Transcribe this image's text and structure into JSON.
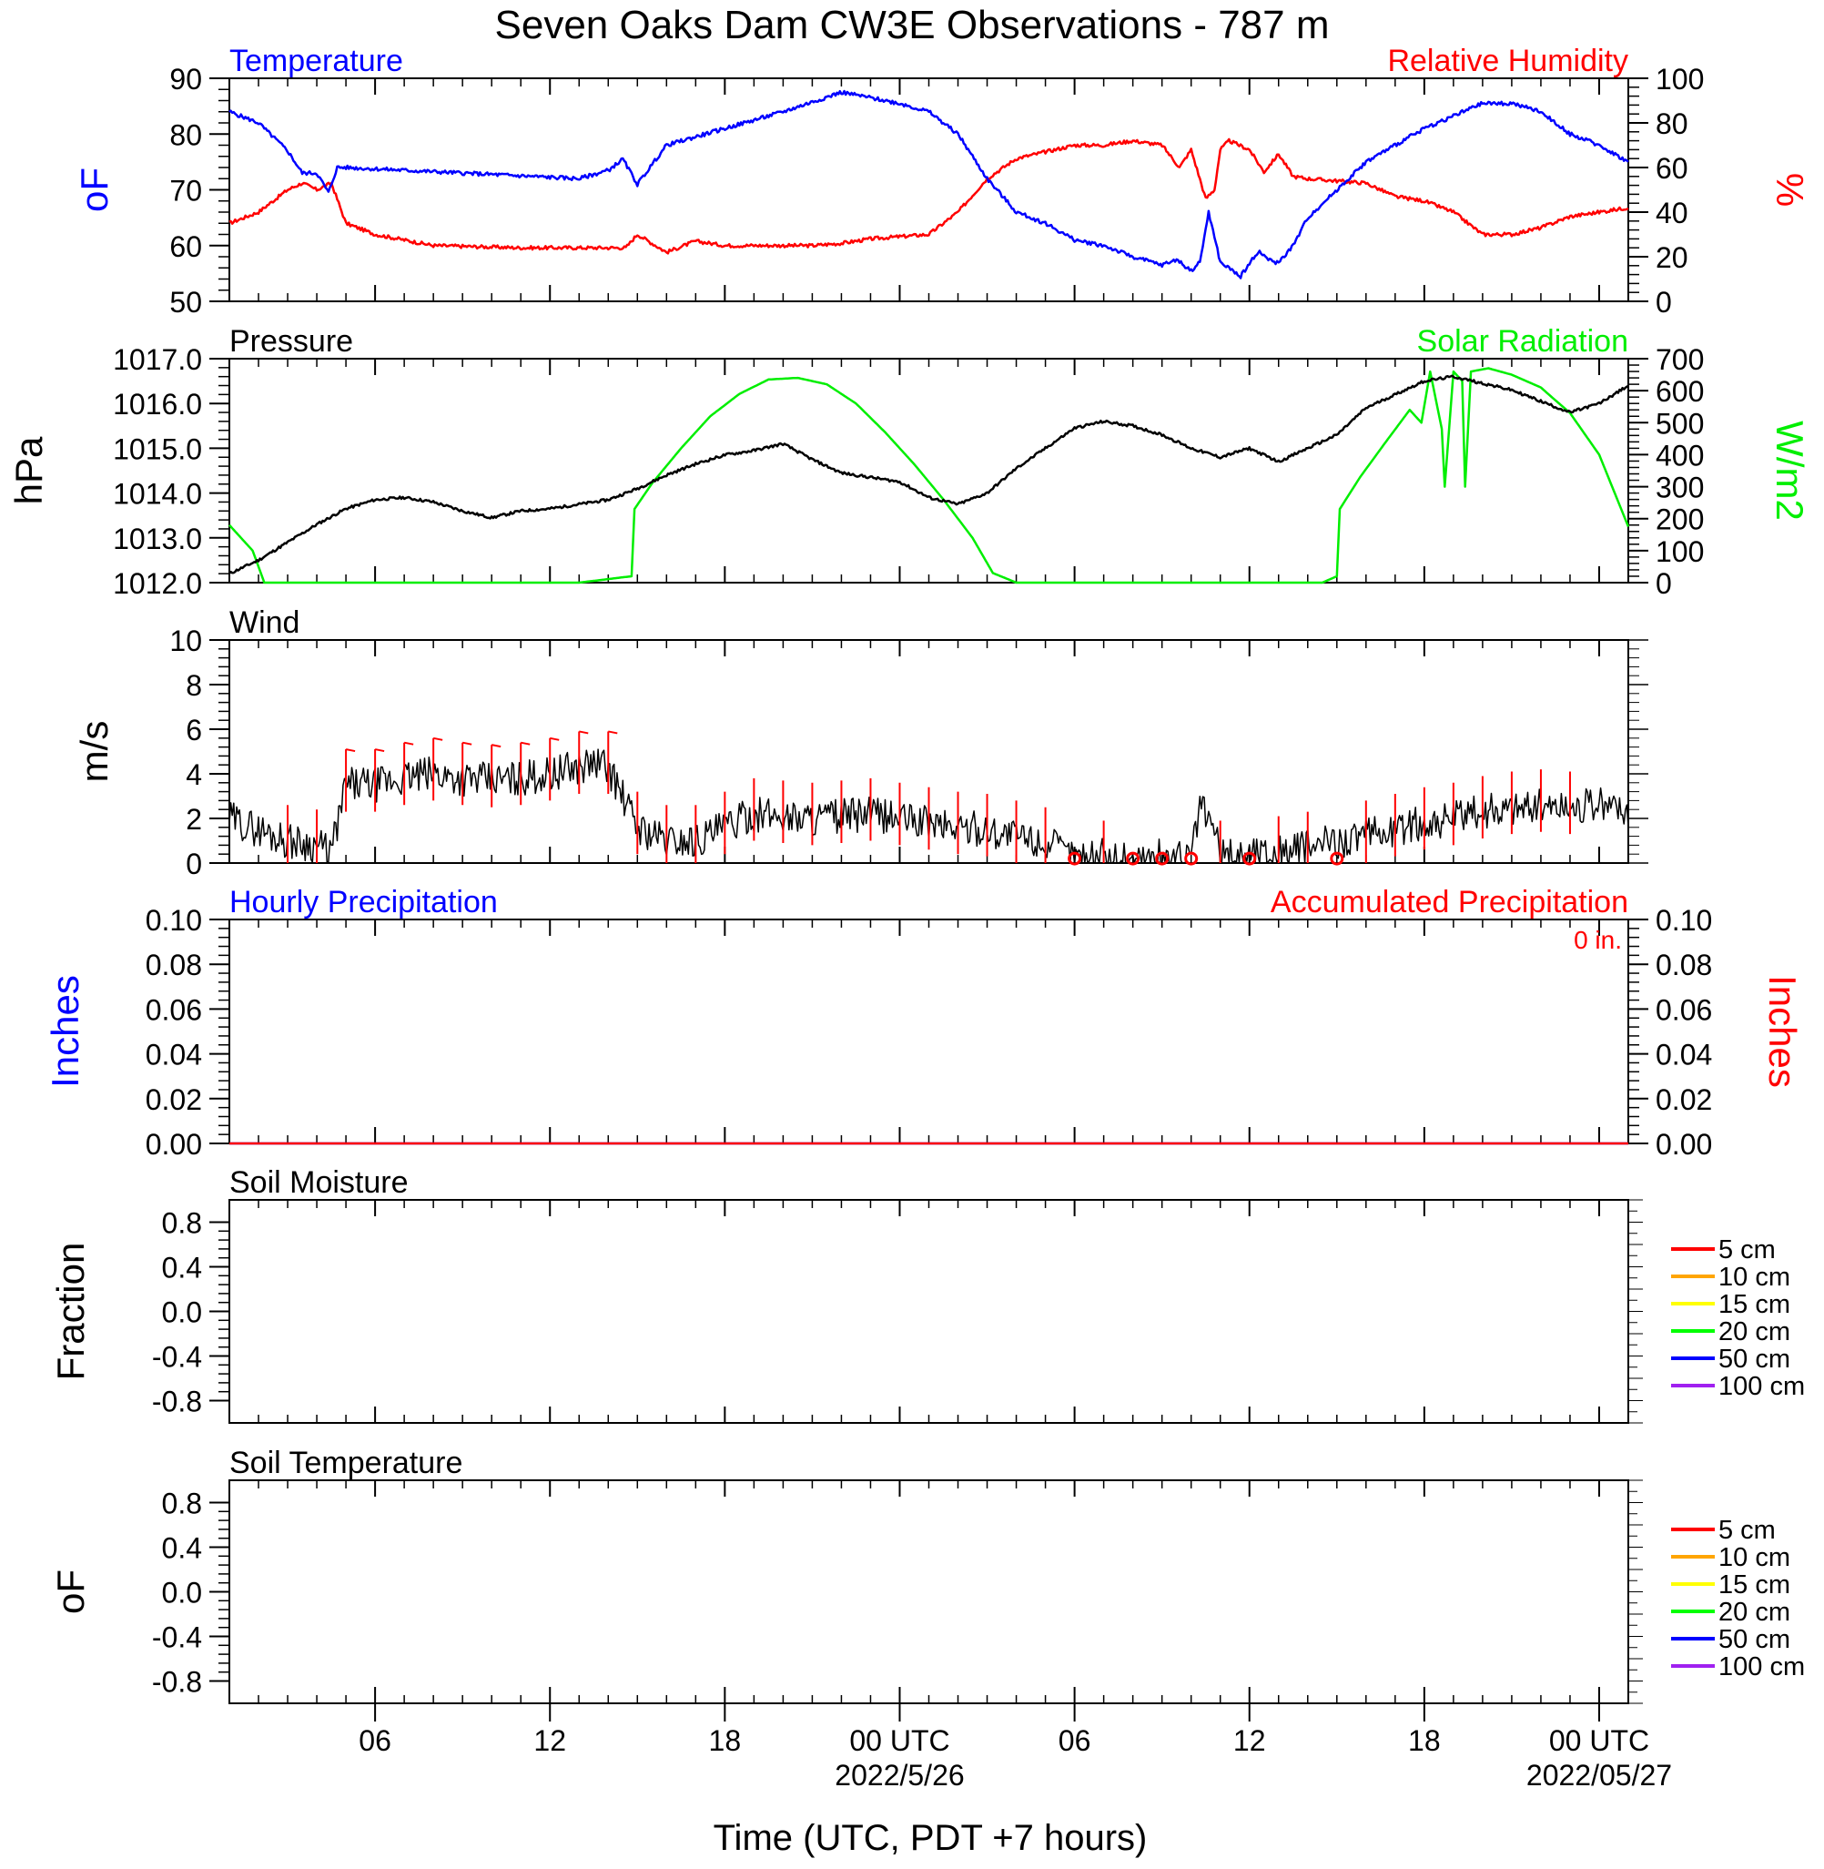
{
  "title": "Seven Oaks Dam CW3E Observations - 787 m",
  "x_axis": {
    "label": "Time (UTC, PDT +7 hours)",
    "range_hours": [
      0,
      48
    ],
    "tick_hours": [
      5,
      11,
      17,
      23,
      29,
      35,
      41,
      47
    ],
    "tick_labels": [
      "06",
      "12",
      "18",
      "00 UTC",
      "06",
      "12",
      "18",
      "00 UTC"
    ],
    "date_labels": [
      {
        "at_hour": 23,
        "text": "2022/5/26"
      },
      {
        "at_hour": 47,
        "text": "2022/05/27"
      }
    ]
  },
  "colors": {
    "temperature": "#0000ff",
    "humidity": "#ff0000",
    "pressure": "#000000",
    "solar": "#00ee00",
    "wind": "#000000",
    "wind_barb": "#ff0000",
    "precip_hourly": "#0000ff",
    "precip_accum": "#ff0000"
  },
  "chart_data": [
    {
      "type": "line",
      "panel": "temperature_humidity",
      "title_left": "Temperature",
      "title_right": "Relative Humidity",
      "ylabel_left": "oF",
      "ylabel_right": "%",
      "ylim_left": [
        50,
        90
      ],
      "ylim_right": [
        0,
        100
      ],
      "yticks_left": [
        "50",
        "60",
        "70",
        "80",
        "90"
      ],
      "yticks_right": [
        "0",
        "20",
        "40",
        "60",
        "80",
        "100"
      ],
      "series": [
        {
          "name": "Temperature",
          "axis": "left",
          "x": [
            0,
            1,
            2,
            2.5,
            3,
            3.4,
            3.7,
            4,
            6,
            10,
            12,
            13,
            13.5,
            14,
            15,
            17,
            19,
            21,
            23,
            24,
            25,
            26,
            27,
            28,
            29,
            30,
            31,
            32,
            32.5,
            33,
            33.3,
            33.6,
            34,
            34.7,
            35.3,
            35.8,
            36,
            36.5,
            37,
            38,
            39,
            40,
            41,
            43,
            44,
            45,
            46,
            47,
            48
          ],
          "y": [
            84,
            82,
            77,
            73,
            73,
            69.5,
            74,
            74,
            73.5,
            72.5,
            72,
            73.5,
            75.5,
            71,
            78,
            81,
            84,
            87.5,
            85.5,
            84,
            80,
            72,
            66,
            64,
            61,
            60,
            58,
            56.5,
            57.5,
            55.5,
            57,
            66,
            57,
            54.5,
            59,
            57,
            57,
            60,
            65,
            70,
            75,
            78,
            81,
            85.5,
            85.5,
            84,
            80,
            78,
            75
          ]
        },
        {
          "name": "Relative Humidity",
          "axis": "right",
          "x": [
            0,
            1,
            2,
            2.5,
            3,
            3.5,
            4,
            5,
            7,
            10,
            13,
            13.6,
            14,
            14.5,
            15,
            16,
            17,
            18,
            20,
            21,
            22,
            24,
            25,
            26,
            27,
            29,
            30,
            31,
            32,
            32.6,
            33,
            33.5,
            33.8,
            34,
            34.3,
            35,
            35.5,
            36,
            36.5,
            37,
            39,
            40,
            41,
            42,
            43,
            44,
            45,
            46,
            47,
            48
          ],
          "y": [
            35,
            40,
            50,
            53,
            50,
            53,
            35,
            30,
            25,
            24,
            24,
            24,
            30,
            26,
            22,
            27,
            25,
            25,
            25,
            26,
            28,
            30,
            40,
            55,
            64,
            70,
            70,
            72,
            70,
            60,
            68,
            46,
            50,
            68,
            72,
            68,
            58,
            66,
            56,
            55,
            53,
            47,
            45,
            40,
            30,
            30,
            33,
            38,
            40,
            42
          ]
        }
      ]
    },
    {
      "type": "line",
      "panel": "pressure_solar",
      "title_left": "Pressure",
      "title_right": "Solar Radiation",
      "ylabel_left": "hPa",
      "ylabel_right": "W/m2",
      "ylim_left": [
        1012.0,
        1017.0
      ],
      "ylim_right": [
        0,
        700
      ],
      "yticks_left": [
        "1012.0",
        "1013.0",
        "1014.0",
        "1015.0",
        "1016.0",
        "1017.0"
      ],
      "yticks_right": [
        "0",
        "100",
        "200",
        "300",
        "400",
        "500",
        "600",
        "700"
      ],
      "series": [
        {
          "name": "Pressure",
          "axis": "left",
          "x": [
            0,
            1,
            2,
            3,
            4,
            5,
            6,
            7,
            8,
            9,
            10,
            11,
            12,
            13,
            14,
            15,
            16,
            17,
            18,
            19,
            20,
            21,
            22,
            23,
            24,
            25,
            26,
            27,
            28,
            29,
            30,
            31,
            32,
            33,
            34,
            35,
            36,
            37,
            38,
            39,
            40,
            41,
            42,
            43,
            44,
            45,
            46,
            47,
            48
          ],
          "y": [
            1012.2,
            1012.5,
            1012.9,
            1013.3,
            1013.65,
            1013.85,
            1013.9,
            1013.8,
            1013.6,
            1013.45,
            1013.6,
            1013.65,
            1013.75,
            1013.85,
            1014.1,
            1014.4,
            1014.65,
            1014.85,
            1014.95,
            1015.1,
            1014.75,
            1014.45,
            1014.35,
            1014.25,
            1013.9,
            1013.75,
            1014.0,
            1014.55,
            1015.0,
            1015.45,
            1015.6,
            1015.5,
            1015.3,
            1015.0,
            1014.8,
            1015.0,
            1014.7,
            1015.0,
            1015.3,
            1015.9,
            1016.2,
            1016.5,
            1016.6,
            1016.45,
            1016.3,
            1016.05,
            1015.8,
            1016.0,
            1016.4
          ]
        },
        {
          "name": "Solar Radiation",
          "axis": "right",
          "x": [
            0,
            0.8,
            1.2,
            2,
            12,
            13.8,
            13.9,
            14.5,
            15.5,
            16.5,
            17.5,
            18.5,
            19.5,
            20.5,
            21.5,
            22.5,
            23.5,
            24.5,
            25.5,
            26.2,
            27,
            37.5,
            38,
            38.1,
            38.8,
            39.6,
            40.5,
            40.9,
            41.2,
            41.6,
            41.7,
            42.0,
            42.3,
            42.4,
            42.6,
            43.2,
            44,
            45,
            46,
            47,
            48
          ],
          "y": [
            180,
            100,
            0,
            0,
            0,
            20,
            230,
            310,
            420,
            520,
            590,
            635,
            640,
            620,
            560,
            470,
            370,
            260,
            140,
            30,
            0,
            0,
            20,
            230,
            330,
            430,
            540,
            500,
            660,
            480,
            300,
            660,
            630,
            300,
            660,
            670,
            650,
            610,
            530,
            400,
            175
          ]
        }
      ]
    },
    {
      "type": "line",
      "panel": "wind",
      "title_left": "Wind",
      "ylabel_left": "m/s",
      "ylim_left": [
        0,
        10
      ],
      "yticks_left": [
        "0",
        "2",
        "4",
        "6",
        "8",
        "10"
      ],
      "series": [
        {
          "name": "Wind",
          "axis": "left",
          "x": [
            0,
            1,
            2,
            3,
            3.5,
            4,
            5,
            6,
            7,
            8,
            9,
            10,
            11,
            12,
            12.5,
            13,
            14,
            15,
            16,
            17,
            18,
            19,
            20,
            21,
            22,
            23,
            24,
            25,
            26,
            27,
            28,
            29,
            30,
            31,
            32,
            33,
            33.3,
            33.8,
            34,
            35,
            36,
            37,
            38,
            39,
            40,
            41,
            42,
            43,
            44,
            45,
            46,
            47,
            48
          ],
          "y": [
            2,
            1.5,
            1,
            0.8,
            0.5,
            3.5,
            3.5,
            3.8,
            4,
            3.8,
            3.7,
            3.8,
            4,
            4.3,
            4.5,
            4.3,
            1.6,
            1,
            1,
            1.6,
            2.2,
            2.1,
            2,
            2.1,
            2.2,
            2,
            1.8,
            1.6,
            1.5,
            1.2,
            0.9,
            0.3,
            0.3,
            0.2,
            0.3,
            0.2,
            2.6,
            1.5,
            0.3,
            0.5,
            0.5,
            0.7,
            1,
            1.2,
            1.5,
            1.8,
            2,
            2.3,
            2.5,
            2.6,
            2.5,
            2.6,
            2.4
          ]
        }
      ],
      "barb_hours": [
        2,
        3,
        4,
        5,
        6,
        7,
        8,
        9,
        10,
        11,
        12,
        13,
        14,
        15,
        16,
        17,
        18,
        19,
        20,
        21,
        22,
        23,
        24,
        25,
        26,
        27,
        28,
        29,
        30,
        31,
        32,
        33,
        34,
        35,
        36,
        37,
        38,
        39,
        40,
        41,
        42,
        43,
        44,
        45,
        46
      ],
      "calm_hours": [
        29,
        31,
        32,
        33,
        35,
        38
      ]
    },
    {
      "type": "line",
      "panel": "precipitation",
      "title_left": "Hourly Precipitation",
      "title_right": "Accumulated Precipitation",
      "annotation": "0 in.",
      "ylabel_left": "Inches",
      "ylabel_right": "Inches",
      "ylim_left": [
        0,
        0.1
      ],
      "ylim_right": [
        0,
        0.1
      ],
      "yticks_left": [
        "0.00",
        "0.02",
        "0.04",
        "0.06",
        "0.08",
        "0.10"
      ],
      "yticks_right": [
        "0.00",
        "0.02",
        "0.04",
        "0.06",
        "0.08",
        "0.10"
      ],
      "series": [
        {
          "name": "Hourly Precipitation",
          "axis": "left",
          "x": [
            0,
            48
          ],
          "y": [
            0,
            0
          ]
        },
        {
          "name": "Accumulated Precipitation",
          "axis": "right",
          "x": [
            0,
            48
          ],
          "y": [
            0,
            0
          ]
        }
      ]
    },
    {
      "type": "line",
      "panel": "soil_moisture",
      "title_left": "Soil Moisture",
      "ylabel_left": "Fraction",
      "ylim_left": [
        -1,
        1
      ],
      "yticks_left": [
        "-0.8",
        "-0.4",
        "0.0",
        "0.4",
        "0.8"
      ],
      "legend": [
        {
          "label": "5 cm",
          "color": "#ff0000"
        },
        {
          "label": "10 cm",
          "color": "#ffa500"
        },
        {
          "label": "15 cm",
          "color": "#ffff00"
        },
        {
          "label": "20 cm",
          "color": "#00ff00"
        },
        {
          "label": "50 cm",
          "color": "#0000ff"
        },
        {
          "label": "100 cm",
          "color": "#a020f0"
        }
      ]
    },
    {
      "type": "line",
      "panel": "soil_temperature",
      "title_left": "Soil Temperature",
      "ylabel_left": "oF",
      "ylim_left": [
        -1,
        1
      ],
      "yticks_left": [
        "-0.8",
        "-0.4",
        "0.0",
        "0.4",
        "0.8"
      ],
      "legend": [
        {
          "label": "5 cm",
          "color": "#ff0000"
        },
        {
          "label": "10 cm",
          "color": "#ffa500"
        },
        {
          "label": "15 cm",
          "color": "#ffff00"
        },
        {
          "label": "20 cm",
          "color": "#00ff00"
        },
        {
          "label": "50 cm",
          "color": "#0000ff"
        },
        {
          "label": "100 cm",
          "color": "#a020f0"
        }
      ]
    }
  ]
}
